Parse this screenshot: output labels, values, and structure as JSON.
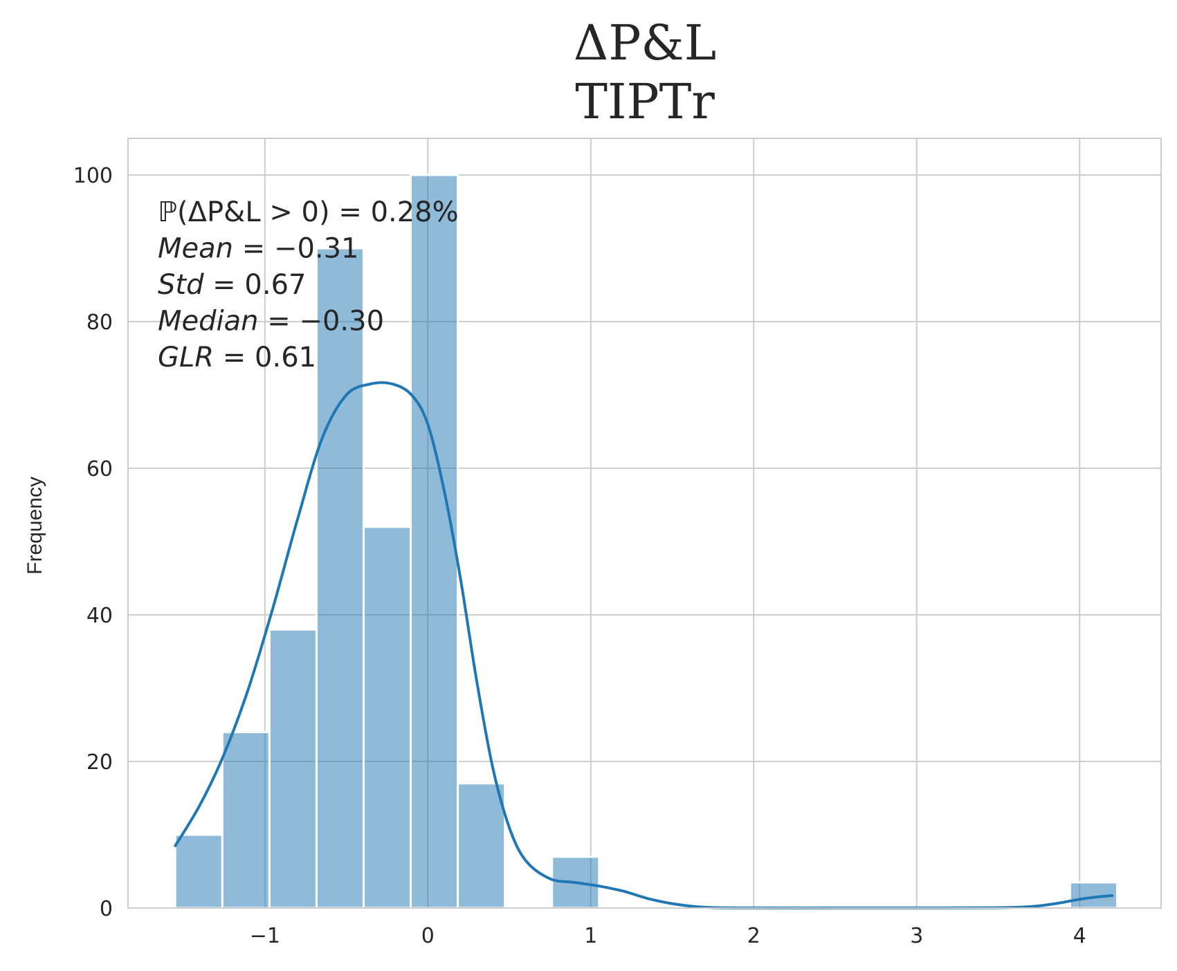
{
  "chart_data": {
    "type": "bar",
    "title": "ΔP&L",
    "subtitle": "TIPTr",
    "xlabel": "",
    "ylabel": "Frequency",
    "xlim": [
      -1.84,
      4.5
    ],
    "ylim": [
      0,
      105
    ],
    "xticks": [
      -1,
      0,
      1,
      2,
      3,
      4
    ],
    "xtick_labels": [
      "−1",
      "0",
      "1",
      "2",
      "3",
      "4"
    ],
    "yticks": [
      0,
      20,
      40,
      60,
      80,
      100
    ],
    "ytick_labels": [
      "0",
      "20",
      "40",
      "60",
      "80",
      "100"
    ],
    "grid": true,
    "bin_width": 0.289,
    "bins": [
      {
        "x0": -1.55,
        "count": 10
      },
      {
        "x0": -1.261,
        "count": 24
      },
      {
        "x0": -0.972,
        "count": 38
      },
      {
        "x0": -0.683,
        "count": 90
      },
      {
        "x0": -0.394,
        "count": 52
      },
      {
        "x0": -0.105,
        "count": 100
      },
      {
        "x0": 0.184,
        "count": 17
      },
      {
        "x0": 0.473,
        "count": 0
      },
      {
        "x0": 0.762,
        "count": 7
      },
      {
        "x0": 1.051,
        "count": 0
      },
      {
        "x0": 1.34,
        "count": 0
      },
      {
        "x0": 1.629,
        "count": 0
      },
      {
        "x0": 1.918,
        "count": 0
      },
      {
        "x0": 2.207,
        "count": 0
      },
      {
        "x0": 2.496,
        "count": 0
      },
      {
        "x0": 2.785,
        "count": 0
      },
      {
        "x0": 3.074,
        "count": 0
      },
      {
        "x0": 3.363,
        "count": 0
      },
      {
        "x0": 3.652,
        "count": 0
      },
      {
        "x0": 3.941,
        "count": 3.5
      }
    ],
    "kde": {
      "x": [
        -1.55,
        -1.4,
        -1.25,
        -1.1,
        -0.95,
        -0.8,
        -0.65,
        -0.5,
        -0.35,
        -0.22,
        -0.1,
        0.0,
        0.1,
        0.2,
        0.3,
        0.4,
        0.5,
        0.6,
        0.75,
        0.9,
        1.05,
        1.2,
        1.35,
        1.5,
        1.7,
        2.0,
        2.5,
        3.0,
        3.5,
        3.7,
        3.85,
        4.0,
        4.1,
        4.2
      ],
      "y": [
        8.5,
        14,
        21,
        30,
        41,
        53,
        64,
        70,
        71.5,
        71.5,
        70,
        66,
        57,
        45,
        31,
        19,
        11,
        6.5,
        4,
        3.5,
        3,
        2.3,
        1.3,
        0.6,
        0.1,
        0.02,
        0.02,
        0.02,
        0.05,
        0.2,
        0.6,
        1.2,
        1.5,
        1.7
      ]
    },
    "colors": {
      "bar": "#1f77b4",
      "kde": "#1f77b4",
      "grid": "#cccccc",
      "text": "#262626"
    }
  },
  "stats": [
    {
      "label": "ℙ(ΔP&L > 0)",
      "value": " = 0.28%"
    },
    {
      "label": "Mean",
      "value": " = −0.31"
    },
    {
      "label": "Std",
      "value": " = 0.67"
    },
    {
      "label": "Median",
      "value": " = −0.30"
    },
    {
      "label": " GLR",
      "value": " = 0.61"
    }
  ]
}
